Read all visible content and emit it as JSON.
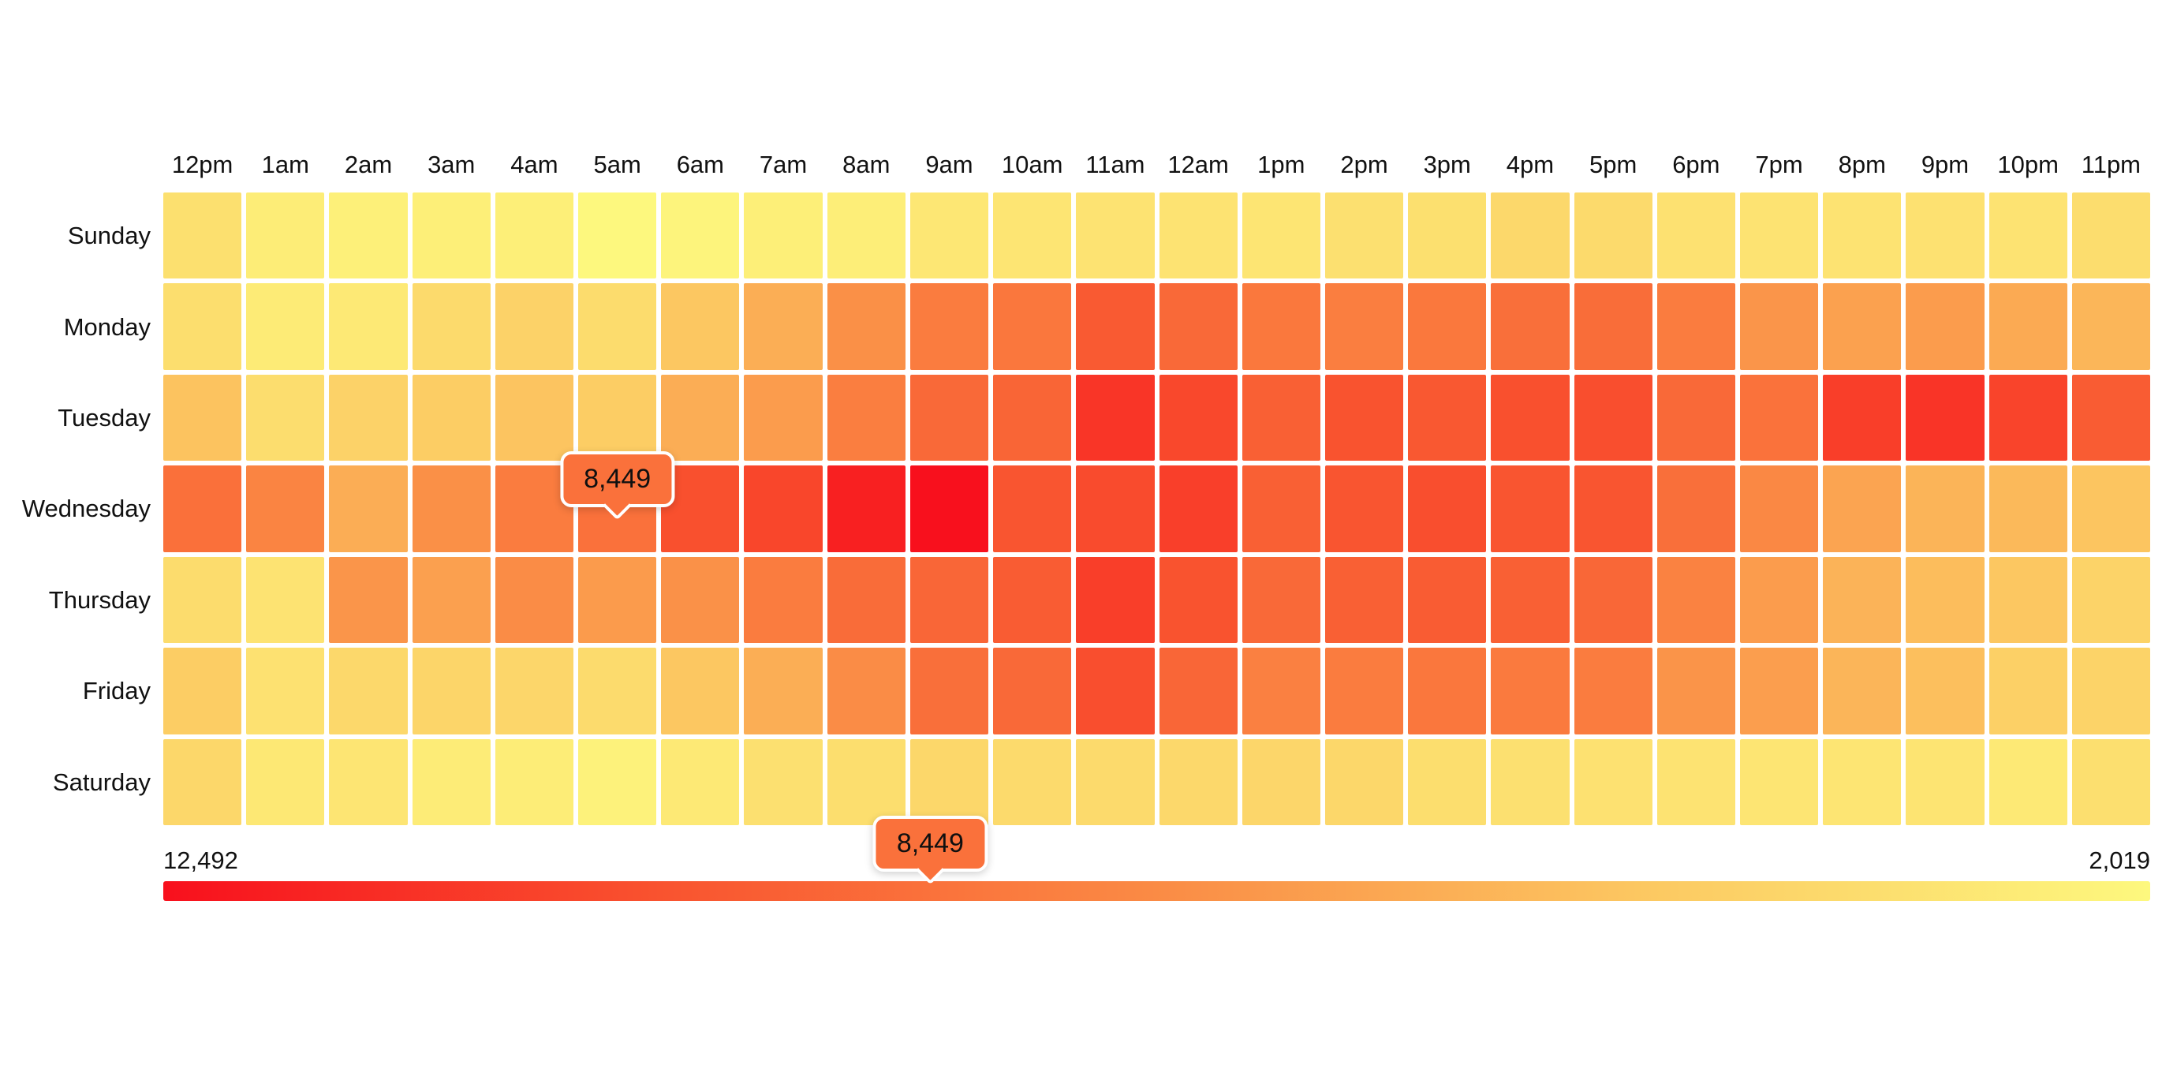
{
  "chart_data": {
    "type": "heatmap",
    "title": "",
    "xlabel": "",
    "ylabel": "",
    "x_labels": [
      "12pm",
      "1am",
      "2am",
      "3am",
      "4am",
      "5am",
      "6am",
      "7am",
      "8am",
      "9am",
      "10am",
      "11am",
      "12am",
      "1pm",
      "2pm",
      "3pm",
      "4pm",
      "5pm",
      "6pm",
      "7pm",
      "8pm",
      "9pm",
      "10pm",
      "11pm"
    ],
    "y_labels": [
      "Sunday",
      "Monday",
      "Tuesday",
      "Wednesday",
      "Thursday",
      "Friday",
      "Saturday"
    ],
    "series": [
      {
        "name": "Sunday",
        "values": [
          3380,
          2650,
          2440,
          2540,
          2540,
          2019,
          2230,
          2540,
          2600,
          2960,
          3070,
          3170,
          3170,
          3070,
          3330,
          3380,
          3800,
          3700,
          3280,
          3170,
          3170,
          3280,
          3170,
          3540
        ]
      },
      {
        "name": "Monday",
        "values": [
          3490,
          2750,
          2860,
          3700,
          4110,
          3590,
          4740,
          5790,
          7050,
          7940,
          8200,
          9560,
          8830,
          8150,
          7880,
          8150,
          8570,
          8670,
          7940,
          6840,
          6310,
          6520,
          5950,
          5420
        ]
      },
      {
        "name": "Tuesday",
        "values": [
          4900,
          3540,
          4110,
          4430,
          4850,
          4430,
          5840,
          6520,
          7880,
          8830,
          9040,
          11030,
          10290,
          9250,
          9870,
          9660,
          9980,
          10080,
          8830,
          8410,
          10710,
          11080,
          10450,
          9450
        ]
      },
      {
        "name": "Wednesday",
        "values": [
          8510,
          7570,
          5840,
          7050,
          7940,
          8449,
          9980,
          10400,
          11860,
          12492,
          9770,
          10190,
          10660,
          9250,
          9770,
          10080,
          9770,
          9770,
          8570,
          7410,
          6210,
          5530,
          5320,
          4790
        ]
      },
      {
        "name": "Thursday",
        "values": [
          3590,
          3170,
          6840,
          6370,
          7200,
          6580,
          6990,
          7940,
          8720,
          8980,
          9450,
          10710,
          9870,
          8830,
          9250,
          9450,
          9250,
          8930,
          7680,
          6520,
          5580,
          5160,
          4740,
          4060
        ]
      },
      {
        "name": "Friday",
        "values": [
          4430,
          3280,
          3800,
          3960,
          3900,
          3640,
          4740,
          5790,
          7200,
          8570,
          8830,
          10080,
          8980,
          7780,
          7940,
          8200,
          8040,
          7940,
          6890,
          6470,
          5480,
          5060,
          4220,
          4060
        ]
      },
      {
        "name": "Saturday",
        "values": [
          3850,
          2910,
          3070,
          2700,
          2650,
          2330,
          2860,
          3330,
          3490,
          3850,
          3700,
          3700,
          3800,
          3900,
          3850,
          3490,
          3330,
          3280,
          3170,
          3070,
          3070,
          3120,
          2860,
          3430
        ]
      }
    ],
    "scale": {
      "max": 12492,
      "min": 2019,
      "max_label": "12,492",
      "min_label": "2,019",
      "high_color": "#F8101D",
      "low_color": "#FDF87E"
    },
    "color_ramp_low_to_high": [
      "#FDF87E",
      "#FCC962",
      "#FA8B45",
      "#F9532F",
      "#F8101D"
    ],
    "legend": {
      "left_label": "12,492",
      "right_label": "2,019",
      "orientation": "high-left to low-right"
    },
    "tooltips": [
      {
        "label": "8,449",
        "value": 8449,
        "anchor": "cell",
        "day": "Wednesday",
        "hour": "5am"
      },
      {
        "label": "8,449",
        "value": 8449,
        "anchor": "legend"
      }
    ],
    "grid_gap_color": "#ffffff",
    "layout": {
      "legend_position": "bottom",
      "grid": "white gaps between cells"
    }
  }
}
